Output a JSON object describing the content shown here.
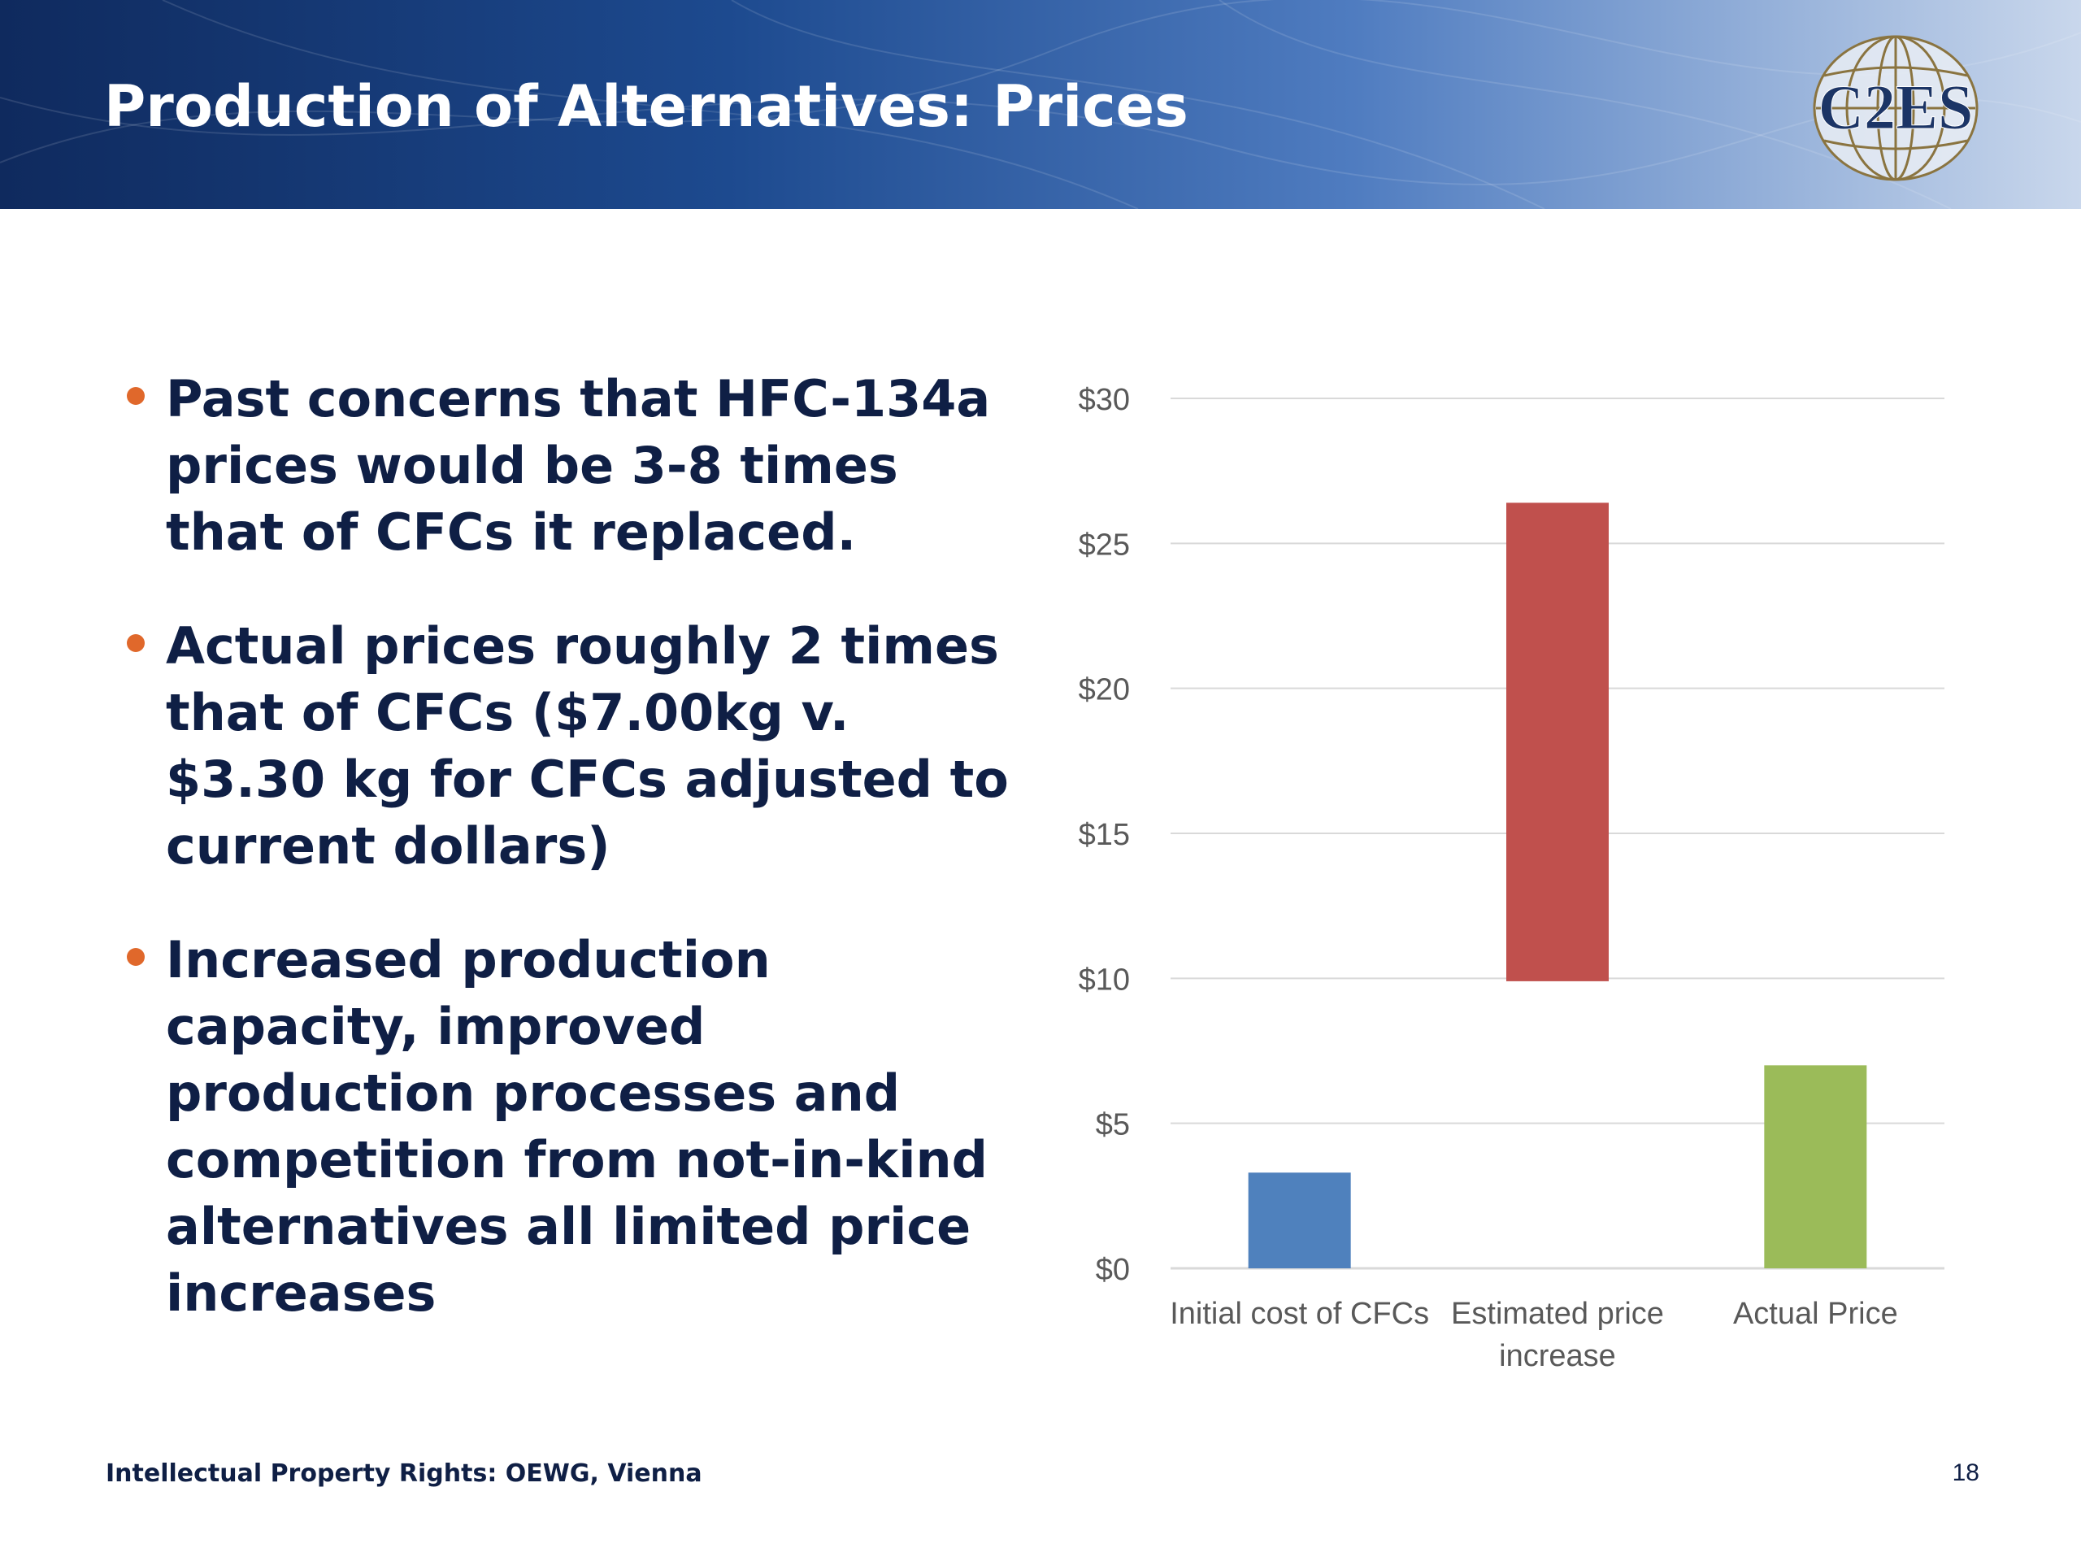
{
  "slide": {
    "title": "Production of Alternatives: Prices",
    "logo_text": "C2ES",
    "bullets": [
      "Past concerns that HFC-134a prices would be 3-8 times that of CFCs it replaced.",
      "Actual prices roughly 2 times that of CFCs ($7.00kg v. $3.30 kg for CFCs adjusted to current dollars)",
      "Increased production capacity, improved production processes and competition from not-in-kind alternatives all limited price increases"
    ],
    "footer": "Intellectual Property Rights: OEWG, Vienna",
    "page_number": "18"
  },
  "colors": {
    "banner_dark": "#0f2a5e",
    "banner_light": "#c9d7ec",
    "bullet_dot": "#e0682b",
    "text_dark": "#0f1f45",
    "gridline": "#d9d9d9",
    "axis_text": "#595959"
  },
  "chart_data": {
    "type": "bar",
    "subtype": "floating",
    "title": "",
    "xlabel": "",
    "ylabel": "",
    "ylim": [
      0,
      30
    ],
    "y_ticks": [
      "$0",
      "$5",
      "$10",
      "$15",
      "$20",
      "$25",
      "$30"
    ],
    "y_tick_values": [
      0,
      5,
      10,
      15,
      20,
      25,
      30
    ],
    "grid": true,
    "legend": false,
    "categories": [
      [
        "Initial cost of CFCs"
      ],
      [
        "Estimated price",
        "increase"
      ],
      [
        "Actual Price"
      ]
    ],
    "bars": [
      {
        "start": 0,
        "end": 3.3,
        "color": "#4f81bd"
      },
      {
        "start": 9.9,
        "end": 26.4,
        "color": "#c0504d"
      },
      {
        "start": 0,
        "end": 7.0,
        "color": "#9bbb59"
      }
    ]
  }
}
